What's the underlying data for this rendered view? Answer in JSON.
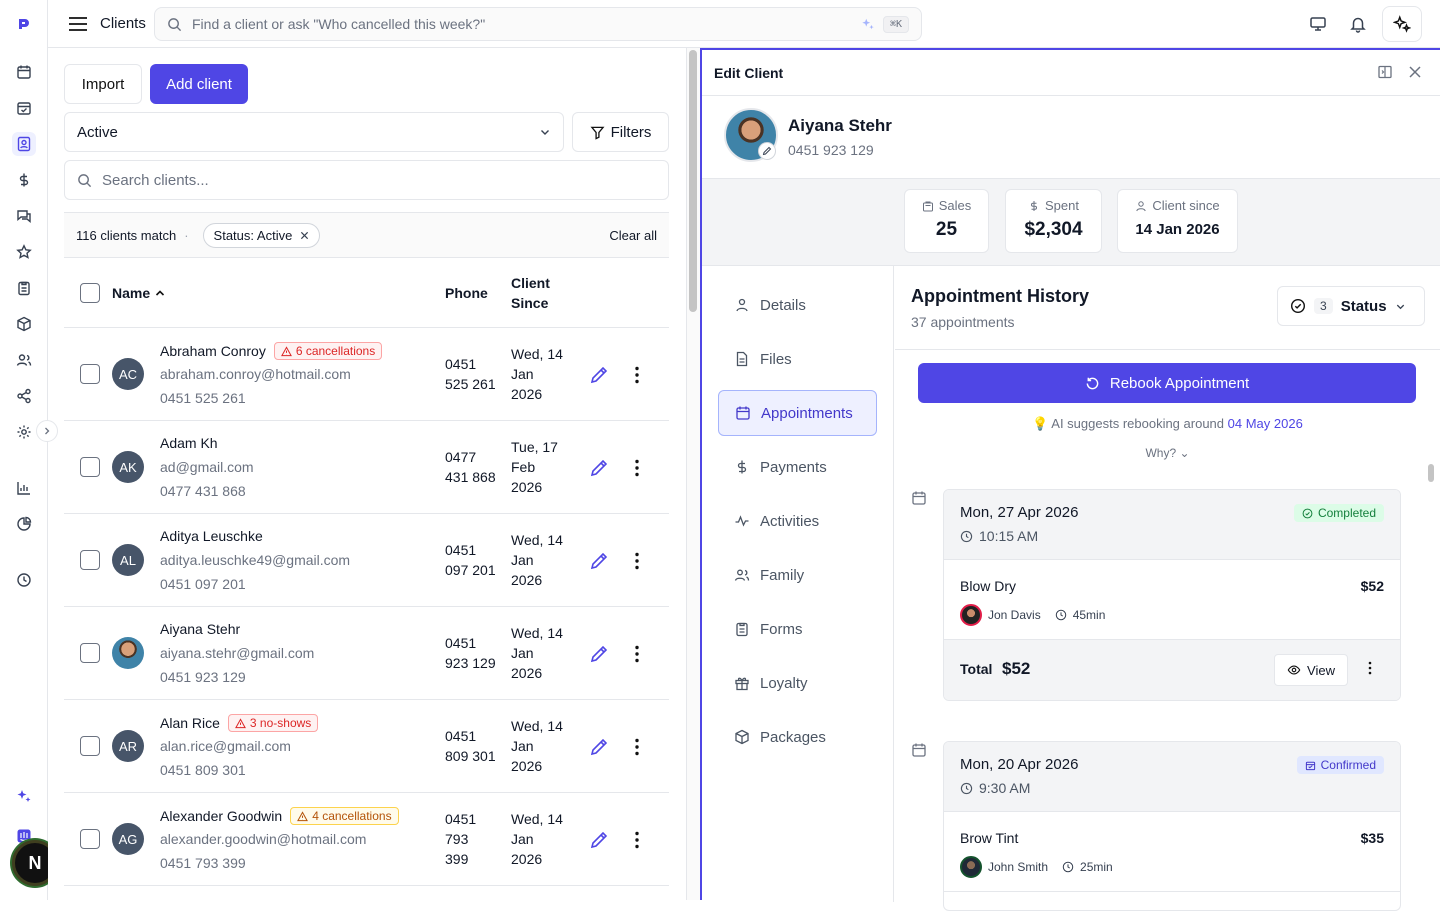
{
  "topbar": {
    "title": "Clients",
    "search_placeholder": "Find a client or ask \"Who cancelled this week?\"",
    "shortcut": "⌘K"
  },
  "sidebar": {
    "avatar_initial": "N"
  },
  "clients": {
    "import_label": "Import",
    "add_label": "Add client",
    "status_select": "Active",
    "filters_label": "Filters",
    "search_placeholder": "Search clients...",
    "match_text": "116 clients match",
    "filter_chip": "Status: Active",
    "clear_all": "Clear all",
    "columns": {
      "name": "Name",
      "phone": "Phone",
      "since_1": "Client",
      "since_2": "Since"
    },
    "rows": [
      {
        "initials": "AC",
        "name": "Abraham Conroy",
        "warning": "6 cancellations",
        "warning_type": "red",
        "email": "abraham.conroy@hotmail.com",
        "phone": "0451 525 261",
        "phone_1": "0451",
        "phone_2": "525 261",
        "since_1": "Wed, 14",
        "since_2": "Jan",
        "since_3": "2026"
      },
      {
        "initials": "AK",
        "name": "Adam Kh",
        "warning": "",
        "warning_type": "",
        "email": "ad@gmail.com",
        "phone": "0477 431 868",
        "phone_1": "0477",
        "phone_2": "431 868",
        "since_1": "Tue, 17",
        "since_2": "Feb",
        "since_3": "2026"
      },
      {
        "initials": "AL",
        "name": "Aditya Leuschke",
        "warning": "",
        "warning_type": "",
        "email": "aditya.leuschke49@gmail.com",
        "phone": "0451 097 201",
        "phone_1": "0451",
        "phone_2": "097 201",
        "since_1": "Wed, 14",
        "since_2": "Jan",
        "since_3": "2026"
      },
      {
        "initials": "",
        "name": "Aiyana Stehr",
        "warning": "",
        "warning_type": "",
        "email": "aiyana.stehr@gmail.com",
        "phone": "0451 923 129",
        "phone_1": "0451",
        "phone_2": "923 129",
        "since_1": "Wed, 14",
        "since_2": "Jan",
        "since_3": "2026"
      },
      {
        "initials": "AR",
        "name": "Alan Rice",
        "warning": "3 no-shows",
        "warning_type": "red",
        "email": "alan.rice@gmail.com",
        "phone": "0451 809 301",
        "phone_1": "0451",
        "phone_2": "809 301",
        "since_1": "Wed, 14",
        "since_2": "Jan",
        "since_3": "2026"
      },
      {
        "initials": "AG",
        "name": "Alexander Goodwin",
        "warning": "4 cancellations",
        "warning_type": "amber",
        "email": "alexander.goodwin@hotmail.com",
        "phone": "0451 793 399",
        "phone_1": "0451",
        "phone_2": "793",
        "phone_3": "399",
        "since_1": "Wed, 14",
        "since_2": "Jan",
        "since_3": "2026"
      }
    ]
  },
  "panel": {
    "title": "Edit Client",
    "client_name": "Aiyana Stehr",
    "client_phone": "0451 923 129",
    "stats": {
      "sales_label": "Sales",
      "sales_value": "25",
      "spent_label": "Spent",
      "spent_value": "$2,304",
      "since_label": "Client since",
      "since_value": "14 Jan 2026"
    },
    "tabs": [
      "Details",
      "Files",
      "Appointments",
      "Payments",
      "Activities",
      "Family",
      "Forms",
      "Loyalty",
      "Packages"
    ],
    "active_tab": "Appointments",
    "history": {
      "title": "Appointment History",
      "subtitle": "37 appointments",
      "status_count": "3",
      "status_label": "Status",
      "rebook_label": "Rebook Appointment",
      "ai_text": "AI suggests rebooking around",
      "ai_date": "04 May 2026",
      "why": "Why?",
      "appointments": [
        {
          "date": "Mon, 27 Apr 2026",
          "time": "10:15 AM",
          "status": "Completed",
          "service": "Blow Dry",
          "price": "$52",
          "staff": "Jon Davis",
          "duration": "45min",
          "total_label": "Total",
          "total": "$52",
          "view_label": "View"
        },
        {
          "date": "Mon, 20 Apr 2026",
          "time": "9:30 AM",
          "status": "Confirmed",
          "service": "Brow Tint",
          "price": "$35",
          "staff": "John Smith",
          "duration": "25min"
        }
      ]
    }
  },
  "colors": {
    "accent": "#4f46e5",
    "danger": "#dc2626",
    "warning": "#b45309",
    "success": "#15803d"
  }
}
